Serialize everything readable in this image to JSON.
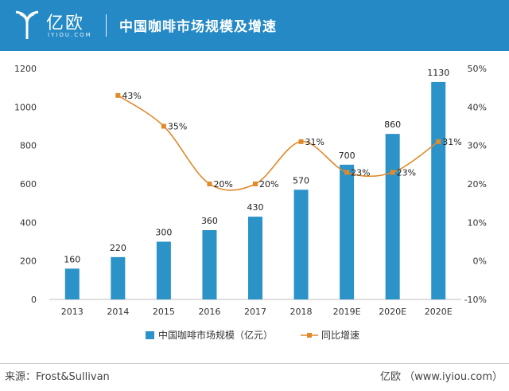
{
  "header": {
    "logo_text": "亿欧",
    "logo_sub": "IYIOU.COM",
    "title": "中国咖啡市场规模及增速"
  },
  "footer": {
    "source": "来源：Frost&Sullivan",
    "credit": "亿欧 （www.iyiou.com）"
  },
  "colors": {
    "header_bg": "#2489c5",
    "bar": "#2b93c8",
    "line": "#e08a2c"
  },
  "chart_data": {
    "type": "bar",
    "categories": [
      "2013",
      "2014",
      "2015",
      "2016",
      "2017",
      "2018",
      "2019E",
      "2020E",
      "2020E"
    ],
    "series": [
      {
        "name": "中国咖啡市场规模（亿元）",
        "type": "bar",
        "axis": "left",
        "values": [
          160,
          220,
          300,
          360,
          430,
          570,
          700,
          860,
          1130
        ],
        "labels": [
          "160",
          "220",
          "300",
          "360",
          "430",
          "570",
          "700",
          "860",
          "1130"
        ]
      },
      {
        "name": "同比增速",
        "type": "line",
        "axis": "right",
        "values": [
          null,
          43,
          35,
          20,
          20,
          31,
          23,
          23,
          31
        ],
        "labels": [
          "",
          "43%",
          "35%",
          "20%",
          "20%",
          "31%",
          "23%",
          "23%",
          "31%"
        ]
      }
    ],
    "y_left": {
      "ylim": [
        0,
        1200
      ],
      "ticks": [
        "0",
        "200",
        "400",
        "600",
        "800",
        "1000",
        "1200"
      ]
    },
    "y_right": {
      "ylim": [
        -10,
        50
      ],
      "ticks": [
        "-10%",
        "0%",
        "10%",
        "20%",
        "30%",
        "40%",
        "50%"
      ]
    },
    "legend_position": "bottom-center",
    "grid": false
  }
}
